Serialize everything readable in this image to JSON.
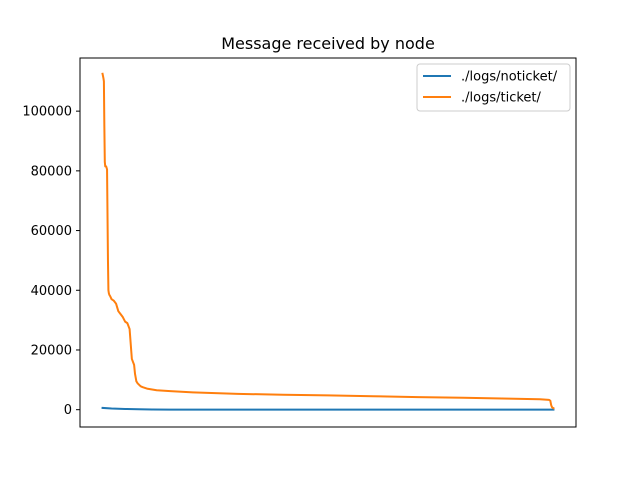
{
  "chart_data": {
    "type": "line",
    "title": "Message received by node",
    "xlabel": "",
    "ylabel": "",
    "ylim": [
      -5800,
      117800
    ],
    "y_ticks": [
      0,
      20000,
      40000,
      60000,
      80000,
      100000
    ],
    "y_tick_labels": [
      "0",
      "20000",
      "40000",
      "60000",
      "80000",
      "100000"
    ],
    "x_ticks": [],
    "xlim": [
      -0.05,
      1.05
    ],
    "grid": false,
    "legend_position": "top-right",
    "series": [
      {
        "name": "./logs/noticket/",
        "color": "#1f77b4",
        "x": [
          0,
          0.02,
          0.05,
          0.08,
          0.11,
          0.15,
          0.3,
          0.5,
          0.7,
          0.9,
          0.995,
          1.0
        ],
        "y": [
          600,
          400,
          250,
          150,
          80,
          40,
          30,
          25,
          20,
          15,
          10,
          5
        ]
      },
      {
        "name": "./logs/ticket/",
        "color": "#ff7f0e",
        "x": [
          0,
          0.002,
          0.003,
          0.004,
          0.005,
          0.006,
          0.008,
          0.01,
          0.012,
          0.013,
          0.014,
          0.015,
          0.017,
          0.02,
          0.025,
          0.03,
          0.035,
          0.04,
          0.045,
          0.05,
          0.055,
          0.06,
          0.065,
          0.07,
          0.072,
          0.075,
          0.078,
          0.08,
          0.082,
          0.085,
          0.09,
          0.1,
          0.12,
          0.15,
          0.2,
          0.3,
          0.4,
          0.5,
          0.6,
          0.7,
          0.8,
          0.9,
          0.97,
          0.99,
          0.993,
          0.995,
          0.997,
          1.0
        ],
        "y": [
          112500,
          111000,
          110000,
          95000,
          83000,
          81500,
          81500,
          80500,
          50000,
          40000,
          39000,
          38500,
          38000,
          37000,
          36500,
          35500,
          33000,
          32000,
          31000,
          29500,
          29000,
          27000,
          17000,
          15000,
          12000,
          9500,
          8800,
          8500,
          8200,
          7800,
          7500,
          7000,
          6500,
          6200,
          5800,
          5300,
          5000,
          4800,
          4500,
          4200,
          4000,
          3700,
          3500,
          3300,
          3000,
          1500,
          800,
          500
        ]
      }
    ]
  }
}
